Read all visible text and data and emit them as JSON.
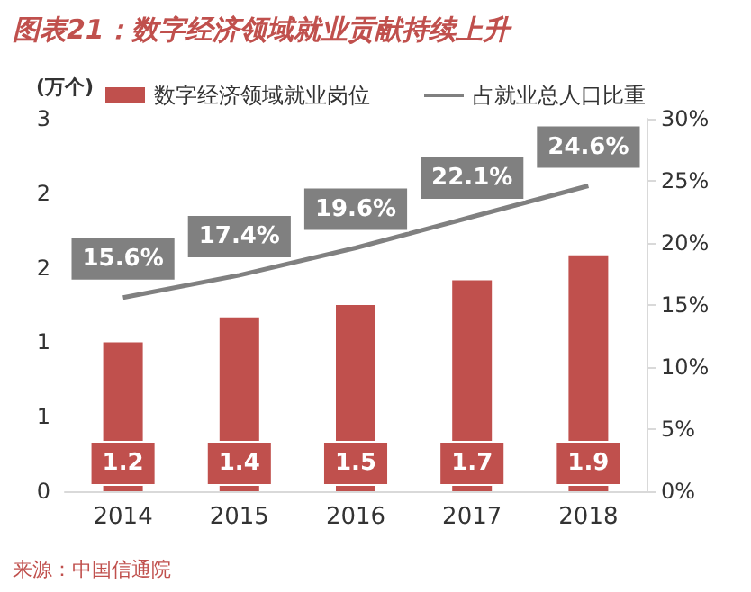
{
  "chart_data": {
    "type": "bar",
    "title": "图表21：数字经济领域就业贡献持续上升",
    "ylabel": "(万个)",
    "categories": [
      "2014",
      "2015",
      "2016",
      "2017",
      "2018"
    ],
    "series": [
      {
        "name": "数字经济领域就业岗位",
        "color": "#c0504d",
        "values": [
          1.2,
          1.4,
          1.5,
          1.7,
          1.9
        ]
      },
      {
        "name": "占就业总人口比重",
        "type": "line",
        "axis": "y2",
        "color": "#808080",
        "values": [
          15.6,
          17.4,
          19.6,
          22.1,
          24.6
        ],
        "value_labels": [
          "15.6%",
          "17.4%",
          "19.6%",
          "22.1%",
          "24.6%"
        ]
      }
    ],
    "data_labels": true,
    "ylim": [
      0,
      3
    ],
    "yticks": [
      0,
      {
        "value": 0.6,
        "label": "1"
      },
      {
        "value": 1.2,
        "label": "1"
      },
      {
        "value": 1.8,
        "label": "2"
      },
      {
        "value": 2.4,
        "label": "2"
      },
      3
    ],
    "y2lim": [
      0,
      30
    ],
    "y2ticks": [
      {
        "value": 0,
        "label": "0%"
      },
      {
        "value": 5,
        "label": "5%"
      },
      {
        "value": 10,
        "label": "10%"
      },
      {
        "value": 15,
        "label": "15%"
      },
      {
        "value": 20,
        "label": "20%"
      },
      {
        "value": 25,
        "label": "25%"
      },
      {
        "value": 30,
        "label": "30%"
      }
    ],
    "legend": "top",
    "grid": false,
    "marker": "none",
    "line_style": "solid",
    "annotations": [
      "来源：中国信通院"
    ]
  }
}
